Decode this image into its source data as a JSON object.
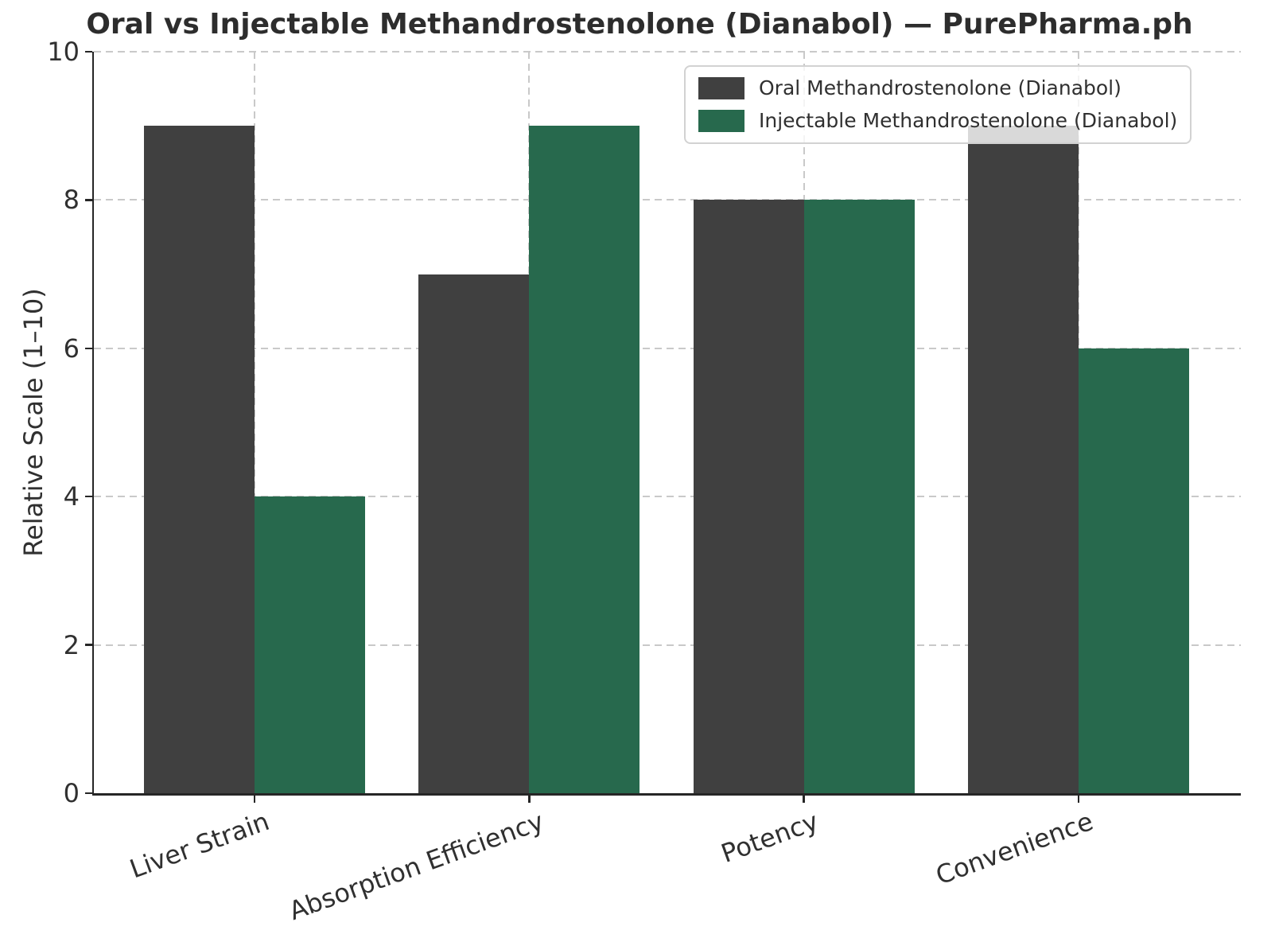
{
  "chart_data": {
    "type": "bar",
    "title": "Oral vs Injectable Methandrostenolone (Dianabol) — PurePharma.ph",
    "ylabel": "Relative Scale (1–10)",
    "xlabel": "",
    "categories": [
      "Liver Strain",
      "Absorption Efficiency",
      "Potency",
      "Convenience"
    ],
    "series": [
      {
        "name": "Oral Methandrostenolone (Dianabol)",
        "color": "#404040",
        "values": [
          9,
          7,
          8,
          9
        ]
      },
      {
        "name": "Injectable Methandrostenolone (Dianabol)",
        "color": "#27694d",
        "values": [
          4,
          9,
          8,
          6
        ]
      }
    ],
    "ylim": [
      0,
      10
    ],
    "yticks": [
      0,
      2,
      4,
      6,
      8,
      10
    ],
    "bar_width": 0.4,
    "grid": true,
    "grid_style": "dashed",
    "legend_position": "upper right",
    "background_color": "#ffffff",
    "text_color": "#303030"
  }
}
